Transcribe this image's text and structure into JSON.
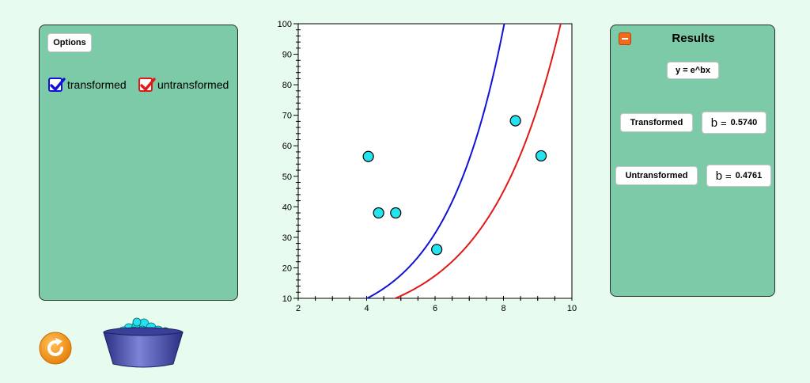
{
  "options": {
    "button_label": "Options",
    "checkboxes": [
      {
        "label": "transformed",
        "checked": true,
        "color": "#1212d6"
      },
      {
        "label": "untransformed",
        "checked": true,
        "color": "#e01818"
      }
    ]
  },
  "results": {
    "title": "Results",
    "equation": "y = e^bx",
    "transformed": {
      "button_label": "Transformed",
      "b_symbol": "b",
      "equals": "=",
      "b_value": "0.5740"
    },
    "untransformed": {
      "button_label": "Untransformed",
      "b_symbol": "b",
      "equals": "=",
      "b_value": "0.4761"
    }
  },
  "icons": {
    "reset": "reset-icon",
    "bucket": "ball-bucket-icon",
    "collapse": "minus-icon"
  },
  "chart_data": {
    "type": "scatter",
    "xlim": [
      2,
      10
    ],
    "ylim": [
      10,
      100
    ],
    "x_ticks": [
      2,
      4,
      6,
      8,
      10
    ],
    "y_ticks": [
      10,
      20,
      30,
      40,
      50,
      60,
      70,
      80,
      90,
      100
    ],
    "points": [
      {
        "x": 4.05,
        "y": 56.5
      },
      {
        "x": 4.35,
        "y": 38
      },
      {
        "x": 4.85,
        "y": 38
      },
      {
        "x": 6.05,
        "y": 26
      },
      {
        "x": 8.35,
        "y": 68.2
      },
      {
        "x": 9.1,
        "y": 56.7
      }
    ],
    "point_color": "#22e3ee",
    "curves": [
      {
        "model": "y = e^(0.5740 x)",
        "b": 0.574,
        "color": "#1212d6"
      },
      {
        "model": "y = e^(0.4761 x)",
        "b": 0.4761,
        "color": "#e01818"
      }
    ],
    "grid": false
  }
}
